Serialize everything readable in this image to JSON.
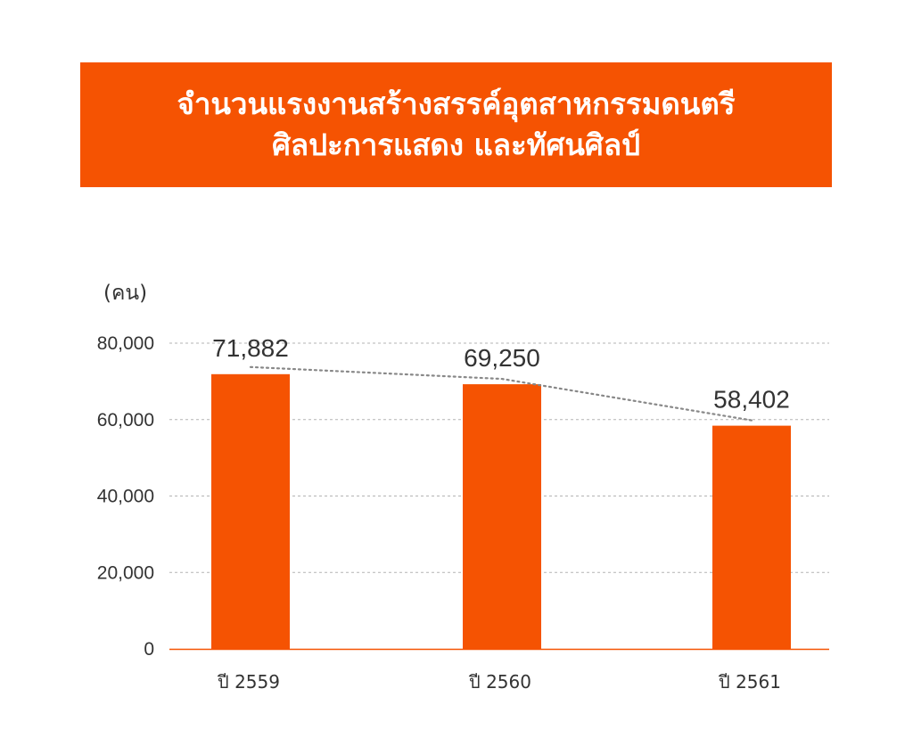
{
  "title": {
    "line1": "จำนวนแรงงานสร้างสรรค์อุตสาหกรรมดนตรี",
    "line2": "ศิลปะการแสดง และทัศนศิลป์"
  },
  "colors": {
    "accent": "#f55302",
    "text": "#333333",
    "grid": "#b3b3b3",
    "trend": "#888888"
  },
  "chart_data": {
    "type": "bar",
    "ylabel": "(คน)",
    "categories": [
      "ปี 2559",
      "ปี 2560",
      "ปี 2561"
    ],
    "values": [
      71882,
      69250,
      58402
    ],
    "data_labels": [
      "71,882",
      "69,250",
      "58,402"
    ],
    "ylim": [
      0,
      80000
    ],
    "yticks": [
      0,
      20000,
      40000,
      60000,
      80000
    ],
    "ytick_labels": [
      "0",
      "20,000",
      "40,000",
      "60,000",
      "80,000"
    ],
    "grid": true,
    "trend_line": "dotted"
  }
}
